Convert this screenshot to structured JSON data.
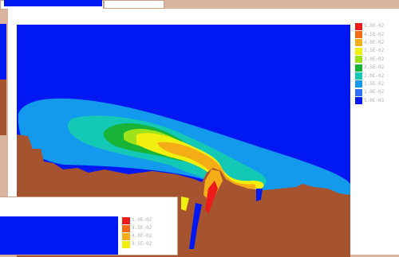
{
  "colors": {
    "background_peach": "#d9b5a0",
    "panel_white": "#ffffff",
    "ocean_blue": "#0018f2",
    "land_brown": "#a6542f"
  },
  "main_legend": {
    "entries": [
      {
        "color": "#ec1c1c",
        "label": "5.0E-02"
      },
      {
        "color": "#f26a14",
        "label": "4.5E-02"
      },
      {
        "color": "#f4ad16",
        "label": "4.0E-02"
      },
      {
        "color": "#f0f010",
        "label": "3.5E-02"
      },
      {
        "color": "#9ee21a",
        "label": "3.0E-02"
      },
      {
        "color": "#18b43a",
        "label": "2.5E-02"
      },
      {
        "color": "#14c8b6",
        "label": "2.0E-02"
      },
      {
        "color": "#149aec",
        "label": "1.5E-02"
      },
      {
        "color": "#2f6ef6",
        "label": "1.0E-02"
      },
      {
        "color": "#0018f2",
        "label": "5.0E-03"
      }
    ]
  },
  "small_legend": {
    "entries": [
      {
        "color": "#ec1c1c",
        "label": "5.0E-02"
      },
      {
        "color": "#f26a14",
        "label": "4.5E-02"
      },
      {
        "color": "#f4ad16",
        "label": "4.0E-02"
      },
      {
        "color": "#f0f010",
        "label": "3.5E-02"
      }
    ]
  }
}
